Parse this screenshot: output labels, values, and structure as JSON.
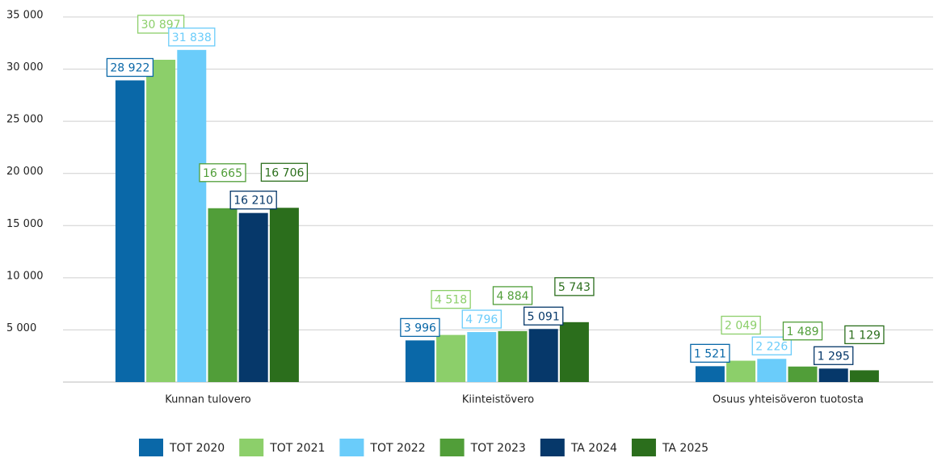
{
  "chart_data": {
    "type": "bar",
    "categories": [
      "Kunnan tulovero",
      "Kiinteistövero",
      "Osuus yhteisöveron tuotosta"
    ],
    "series": [
      {
        "name": "TOT 2020",
        "color": "#0a68a8",
        "values": [
          28922,
          3996,
          1521
        ],
        "value_labels": [
          "28 922",
          "3 996",
          "1 521"
        ]
      },
      {
        "name": "TOT 2021",
        "color": "#8ccf6a",
        "values": [
          30897,
          4518,
          2049
        ],
        "value_labels": [
          "30 897",
          "4 518",
          "2 049"
        ]
      },
      {
        "name": "TOT 2022",
        "color": "#6accfa",
        "values": [
          31838,
          4796,
          2226
        ],
        "value_labels": [
          "31 838",
          "4 796",
          "2 226"
        ]
      },
      {
        "name": "TOT 2023",
        "color": "#519e39",
        "values": [
          16665,
          4884,
          1489
        ],
        "value_labels": [
          "16 665",
          "4 884",
          "1 489"
        ]
      },
      {
        "name": "TA 2024",
        "color": "#06386a",
        "values": [
          16210,
          5091,
          1295
        ],
        "value_labels": [
          "16 210",
          "5 091",
          "1 295"
        ]
      },
      {
        "name": "TA 2025",
        "color": "#2b6e1c",
        "values": [
          16706,
          5743,
          1129
        ],
        "value_labels": [
          "16 706",
          "5 743",
          "1 129"
        ]
      }
    ],
    "ylim": [
      0,
      35000
    ],
    "yticks": [
      {
        "value": 5000,
        "label": "5 000"
      },
      {
        "value": 10000,
        "label": "10 000"
      },
      {
        "value": 15000,
        "label": "15 000"
      },
      {
        "value": 20000,
        "label": "20 000"
      },
      {
        "value": 25000,
        "label": "25 000"
      },
      {
        "value": 30000,
        "label": "30 000"
      },
      {
        "value": 35000,
        "label": "35 000"
      }
    ],
    "grid": true
  }
}
